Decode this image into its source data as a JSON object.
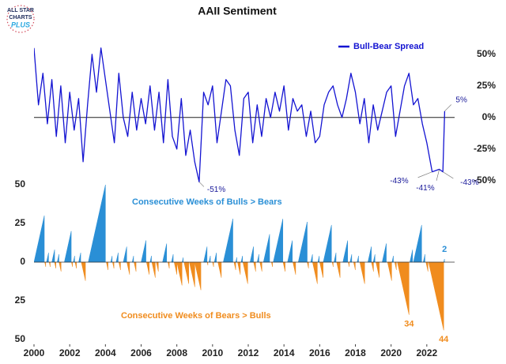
{
  "logo": {
    "lines": [
      "ALL STAR",
      "CHARTS"
    ],
    "plus": "PLUS"
  },
  "chart_data": [
    {
      "type": "line",
      "title": "AAII Sentiment",
      "legend": "upper right",
      "xlim": [
        2000,
        2024
      ],
      "ylim": [
        -57,
        63
      ],
      "yticks": [
        {
          "value": 50,
          "label": "50%"
        },
        {
          "value": 25,
          "label": "25%"
        },
        {
          "value": 0,
          "label": "0%"
        },
        {
          "value": -25,
          "label": "-25%"
        },
        {
          "value": -50,
          "label": "-50%"
        }
      ],
      "x": [
        2000,
        2000.25,
        2000.5,
        2000.75,
        2001,
        2001.25,
        2001.5,
        2001.75,
        2002,
        2002.25,
        2002.5,
        2002.75,
        2003,
        2003.25,
        2003.5,
        2003.75,
        2004,
        2004.25,
        2004.5,
        2004.75,
        2005,
        2005.25,
        2005.5,
        2005.75,
        2006,
        2006.25,
        2006.5,
        2006.75,
        2007,
        2007.25,
        2007.5,
        2007.75,
        2008,
        2008.25,
        2008.5,
        2008.75,
        2009,
        2009.25,
        2009.5,
        2009.75,
        2010,
        2010.25,
        2010.5,
        2010.75,
        2011,
        2011.25,
        2011.5,
        2011.75,
        2012,
        2012.25,
        2012.5,
        2012.75,
        2013,
        2013.25,
        2013.5,
        2013.75,
        2014,
        2014.25,
        2014.5,
        2014.75,
        2015,
        2015.25,
        2015.5,
        2015.75,
        2016,
        2016.25,
        2016.5,
        2016.75,
        2017,
        2017.25,
        2017.5,
        2017.75,
        2018,
        2018.25,
        2018.5,
        2018.75,
        2019,
        2019.25,
        2019.5,
        2019.75,
        2020,
        2020.25,
        2020.5,
        2020.75,
        2021,
        2021.25,
        2021.5,
        2021.75,
        2022,
        2022.3,
        2022.7,
        2022.9,
        2023
      ],
      "series": [
        {
          "name": "Bull-Bear Spread",
          "color": "#1414d2",
          "values": [
            55,
            10,
            35,
            -5,
            30,
            -15,
            25,
            -20,
            20,
            -10,
            15,
            -35,
            10,
            50,
            20,
            55,
            30,
            5,
            -20,
            35,
            0,
            -15,
            20,
            -10,
            15,
            -5,
            25,
            -10,
            20,
            -20,
            30,
            -15,
            -25,
            15,
            -30,
            -10,
            -35,
            -51,
            20,
            10,
            25,
            -20,
            5,
            30,
            25,
            -10,
            -30,
            15,
            20,
            -20,
            10,
            -15,
            15,
            0,
            20,
            5,
            25,
            -10,
            15,
            5,
            10,
            -15,
            5,
            -20,
            -15,
            10,
            20,
            25,
            10,
            0,
            15,
            35,
            20,
            -5,
            15,
            -20,
            10,
            -10,
            5,
            20,
            25,
            -15,
            5,
            25,
            35,
            10,
            15,
            -5,
            -20,
            -43,
            -41,
            -43,
            5
          ],
          "value_labels": [
            null,
            null,
            null,
            null,
            null,
            null,
            null,
            null,
            null,
            null,
            null,
            null,
            null,
            null,
            null,
            null,
            null,
            null,
            null,
            null,
            null,
            null,
            null,
            null,
            null,
            null,
            null,
            null,
            null,
            null,
            null,
            null,
            null,
            null,
            null,
            null,
            null,
            "-51%",
            null,
            null,
            null,
            null,
            null,
            null,
            null,
            null,
            null,
            null,
            null,
            null,
            null,
            null,
            null,
            null,
            null,
            null,
            null,
            null,
            null,
            null,
            null,
            null,
            null,
            null,
            null,
            null,
            null,
            null,
            null,
            null,
            null,
            null,
            null,
            null,
            null,
            null,
            null,
            null,
            null,
            null,
            null,
            null,
            null,
            null,
            null,
            null,
            null,
            null,
            null,
            "-43%",
            "-41%",
            "-43%",
            "5%"
          ]
        }
      ]
    },
    {
      "type": "area",
      "xlim": [
        2000,
        2024
      ],
      "ylim": [
        -50,
        50
      ],
      "yticks": [
        50,
        25,
        0,
        {
          "value": -25,
          "label": "25"
        },
        {
          "value": -50,
          "label": "50"
        }
      ],
      "xticks": [
        2000,
        2002,
        2004,
        2006,
        2008,
        2010,
        2012,
        2014,
        2016,
        2018,
        2020,
        2022
      ],
      "series": [
        {
          "name": "Consecutive Weeks of Bulls > Bears",
          "color": "#2a8fd6",
          "x": [
            2000,
            2000.7,
            2001,
            2001.3,
            2001.7,
            2002.2,
            2002.5,
            2003.04,
            2004.3,
            2004.6,
            2005,
            2005.5,
            2006,
            2006.5,
            2007.2,
            2007.7,
            2008.3,
            2009.5,
            2009.8,
            2010.1,
            2010.6,
            2011.3,
            2011.6,
            2012.1,
            2012.5,
            2012.85,
            2013.4,
            2014.2,
            2014.8,
            2015.5,
            2015.9,
            2016.2,
            2016.8,
            2017.3,
            2017.7,
            2018.1,
            2018.7,
            2019,
            2019.5,
            2020.05,
            2021.05,
            2021.25,
            2021.8,
            2022.95
          ],
          "values": [
            30,
            6,
            8,
            5,
            20,
            4,
            6,
            50,
            4,
            6,
            10,
            4,
            14,
            4,
            12,
            5,
            3,
            10,
            4,
            6,
            28,
            3,
            4,
            10,
            5,
            18,
            28,
            14,
            26,
            5,
            4,
            24,
            6,
            14,
            5,
            4,
            10,
            5,
            12,
            4,
            8,
            24,
            5,
            2
          ]
        },
        {
          "name": "Consecutive Weeks of Bears > Bulls",
          "color": "#f08c1e",
          "x": [
            2000.6,
            2000.85,
            2001.15,
            2001.4,
            2002.1,
            2002.3,
            2002.65,
            2004.05,
            2004.4,
            2004.75,
            2005.2,
            2005.6,
            2006.3,
            2006.6,
            2006.85,
            2007.5,
            2007.85,
            2008,
            2008.4,
            2008.7,
            2009,
            2009.7,
            2010,
            2010.3,
            2011.2,
            2011.4,
            2011.7,
            2012.3,
            2012.65,
            2013.3,
            2013.95,
            2014.5,
            2015.3,
            2015.6,
            2016,
            2016.7,
            2016.95,
            2017.6,
            2017.9,
            2018.25,
            2018.9,
            2019.15,
            2019.8,
            2020.2,
            2020.35,
            2021.95,
            2022.1
          ],
          "values": [
            -3,
            -3,
            -4,
            -6,
            -3,
            -4,
            -12,
            -5,
            -4,
            -5,
            -8,
            -6,
            -8,
            -10,
            -6,
            -4,
            -8,
            -15,
            -14,
            -16,
            -18,
            -2,
            -3,
            -10,
            -5,
            -8,
            -14,
            -6,
            -6,
            -3,
            -6,
            -8,
            -4,
            -14,
            -10,
            -3,
            -10,
            -3,
            -5,
            -14,
            -6,
            -10,
            -12,
            -5,
            -34,
            -6,
            -44
          ],
          "value_labels": [
            null,
            null,
            null,
            null,
            null,
            null,
            null,
            null,
            null,
            null,
            null,
            null,
            null,
            null,
            null,
            null,
            null,
            null,
            null,
            null,
            null,
            null,
            null,
            null,
            null,
            null,
            null,
            null,
            null,
            null,
            null,
            null,
            null,
            null,
            null,
            null,
            null,
            null,
            null,
            null,
            null,
            null,
            null,
            null,
            "34",
            null,
            "44"
          ]
        }
      ]
    }
  ]
}
